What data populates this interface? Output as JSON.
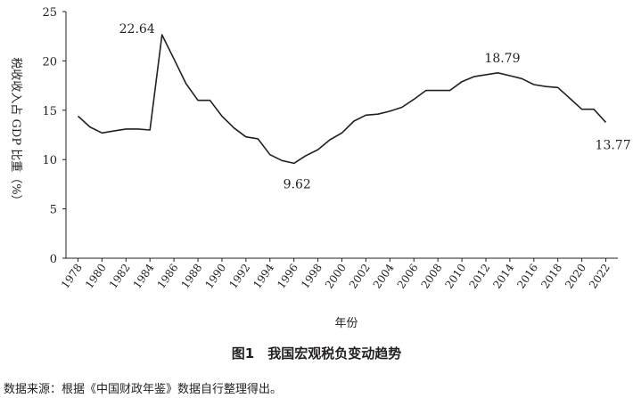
{
  "chart_data": {
    "type": "line",
    "xlabel": "年份",
    "ylabel": "税收收入占 GDP 比重（%）",
    "ylim": [
      0,
      25
    ],
    "yticks": [
      "0",
      "5",
      "10",
      "15",
      "20",
      "25"
    ],
    "xticks": [
      "1978",
      "1980",
      "1982",
      "1984",
      "1986",
      "1988",
      "1990",
      "1992",
      "1994",
      "1996",
      "1998",
      "2000",
      "2002",
      "2004",
      "2006",
      "2008",
      "2010",
      "2012",
      "2014",
      "2016",
      "2018",
      "2020",
      "2022"
    ],
    "grid": false,
    "series": [
      {
        "x": [
          1978,
          1979,
          1980,
          1981,
          1982,
          1983,
          1984,
          1985,
          1986,
          1987,
          1988,
          1989,
          1990,
          1991,
          1992,
          1993,
          1994,
          1995,
          1996,
          1997,
          1998,
          1999,
          2000,
          2001,
          2002,
          2003,
          2004,
          2005,
          2006,
          2007,
          2008,
          2009,
          2010,
          2011,
          2012,
          2013,
          2014,
          2015,
          2016,
          2017,
          2018,
          2019,
          2020,
          2021,
          2022
        ],
        "y": [
          14.4,
          13.3,
          12.7,
          12.9,
          13.1,
          13.1,
          13.0,
          22.64,
          20.2,
          17.7,
          16.0,
          16.0,
          14.4,
          13.2,
          12.3,
          12.1,
          10.5,
          9.9,
          9.62,
          10.4,
          11.0,
          12.0,
          12.7,
          13.9,
          14.5,
          14.6,
          14.9,
          15.3,
          16.1,
          17.0,
          17.0,
          17.0,
          17.9,
          18.4,
          18.6,
          18.79,
          18.5,
          18.2,
          17.6,
          17.4,
          17.3,
          16.2,
          15.1,
          15.1,
          13.77
        ]
      }
    ],
    "annotations": [
      {
        "text": "22.64"
      },
      {
        "text": "9.62"
      },
      {
        "text": "18.79"
      },
      {
        "text": "13.77"
      }
    ]
  },
  "caption": "图1　我国宏观税负变动趋势",
  "source": "数据来源：根据《中国财政年鉴》数据自行整理得出。"
}
